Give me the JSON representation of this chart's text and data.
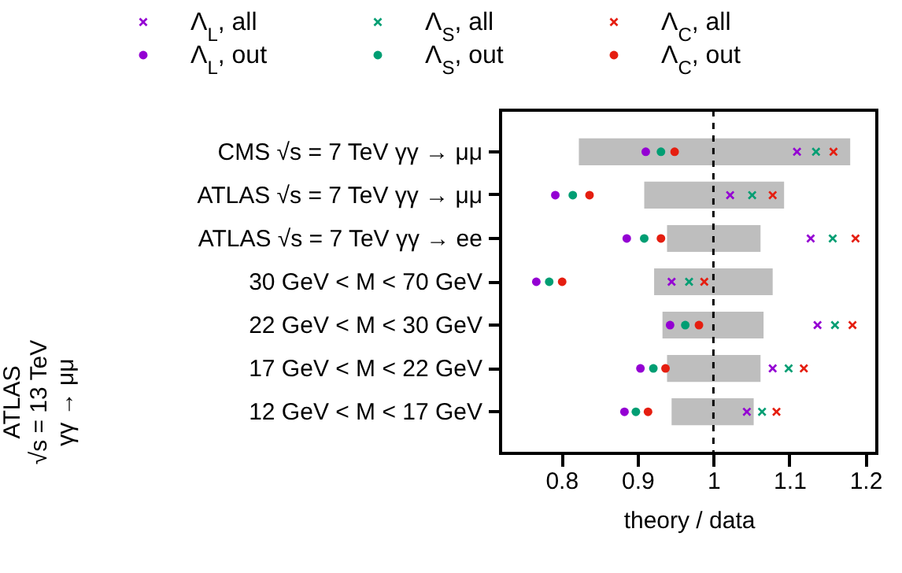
{
  "chart_data": {
    "type": "scatter",
    "orientation": "horizontal",
    "xlabel": "theory / data",
    "categories": [
      "CMS √s = 7 TeV γγ → μμ",
      "ATLAS √s = 7 TeV γγ → μμ",
      "ATLAS √s = 7 TeV γγ → ee",
      "30 GeV < M < 70 GeV",
      "22 GeV < M < 30 GeV",
      "17 GeV < M < 22 GeV",
      "12 GeV < M < 17 GeV"
    ],
    "xlim": [
      0.72,
      1.215
    ],
    "xticks": [
      0.8,
      0.9,
      1,
      1.1,
      1.2
    ],
    "grid": false,
    "legend": "top",
    "annotations": [
      "ATLAS\n√s = 13 TeV\nγγ → μμ"
    ],
    "ref_lines": [
      {
        "axis": "x",
        "value": 1,
        "line_style": "dashed",
        "color": "#000000"
      }
    ],
    "series": [
      {
        "type": "bar",
        "color": "#bebebe",
        "base": [
          0.823,
          0.909,
          0.939,
          0.922,
          0.933,
          0.939,
          0.945
        ],
        "values": [
          0.357,
          0.184,
          0.123,
          0.156,
          0.133,
          0.123,
          0.108
        ]
      },
      {
        "name": "Λ$_{L}$, all",
        "color": "#9400d3",
        "marker": "cross",
        "values": [
          1.11,
          1.022,
          1.128,
          0.945,
          1.137,
          1.078,
          1.044
        ]
      },
      {
        "name": "Λ$_{S}$, all",
        "color": "#009e73",
        "marker": "cross",
        "values": [
          1.135,
          1.051,
          1.157,
          0.968,
          1.16,
          1.099,
          1.064
        ]
      },
      {
        "name": "Λ$_{C}$, all",
        "color": "#e51e10",
        "marker": "cross",
        "values": [
          1.158,
          1.078,
          1.187,
          0.988,
          1.183,
          1.119,
          1.083
        ]
      },
      {
        "name": "Λ$_{L}$, out",
        "color": "#9400d3",
        "marker": "circle",
        "values": [
          0.911,
          0.792,
          0.886,
          0.767,
          0.943,
          0.904,
          0.883
        ]
      },
      {
        "name": "Λ$_{S}$, out",
        "color": "#009e73",
        "marker": "circle",
        "values": [
          0.931,
          0.815,
          0.909,
          0.784,
          0.963,
          0.921,
          0.898
        ]
      },
      {
        "name": "Λ$_{C}$, out",
        "color": "#e51e10",
        "marker": "circle",
        "values": [
          0.949,
          0.837,
          0.931,
          0.801,
          0.981,
          0.937,
          0.914
        ]
      }
    ]
  }
}
